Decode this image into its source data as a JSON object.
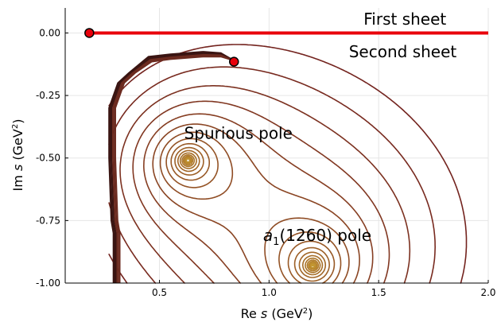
{
  "chart_data": {
    "type": "contour",
    "xlabel": {
      "main": "Re",
      "var": "s",
      "unit": "(GeV",
      "exp": "2",
      "close": ")"
    },
    "ylabel": {
      "main": "Im",
      "var": "s",
      "unit": "(GeV",
      "exp": "2",
      "close": ")"
    },
    "xlim": [
      0.07,
      2.0
    ],
    "ylim": [
      -1.0,
      0.1
    ],
    "xticks": [
      {
        "v": 0.5,
        "label": "0.5"
      },
      {
        "v": 1.0,
        "label": "1.0"
      },
      {
        "v": 1.5,
        "label": "1.5"
      },
      {
        "v": 2.0,
        "label": "2.0"
      }
    ],
    "yticks": [
      {
        "v": 0.0,
        "label": "0.00"
      },
      {
        "v": -0.25,
        "label": "-0.25"
      },
      {
        "v": -0.5,
        "label": "-0.50"
      },
      {
        "v": -0.75,
        "label": "-0.75"
      },
      {
        "v": -1.0,
        "label": "-1.00"
      }
    ],
    "grid": true,
    "cut": {
      "y": 0.0,
      "x_from": 0.18,
      "x_to": 2.0,
      "color": "#e8000b"
    },
    "points": [
      {
        "x": 0.18,
        "y": 0.0
      },
      {
        "x": 0.84,
        "y": -0.115
      }
    ],
    "poles": [
      {
        "x": 0.63,
        "y": -0.51
      },
      {
        "x": 1.2,
        "y": -0.93
      }
    ],
    "annotations": [
      {
        "text": "First sheet",
        "x": 1.62,
        "y": 0.055
      },
      {
        "text": "Second sheet",
        "x": 1.61,
        "y": -0.075
      },
      {
        "text": "Spurious pole",
        "x": 0.86,
        "y": -0.4
      },
      {
        "text_parts": [
          "a",
          "1",
          "(1260) pole"
        ],
        "x": 1.22,
        "y": -0.81
      }
    ]
  }
}
